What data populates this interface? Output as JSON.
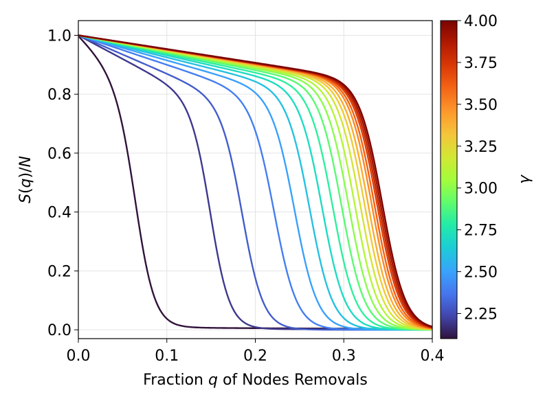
{
  "chart_data": {
    "type": "line",
    "title": "",
    "xlabel": "Fraction q of Nodes Removals",
    "xlabel_parts": [
      "Fraction ",
      "q",
      " of Nodes Removals"
    ],
    "ylabel": "S(q)/N",
    "ylabel_parts": [
      "S",
      "(",
      "q",
      ")/",
      "N"
    ],
    "xlim": [
      0.0,
      0.4
    ],
    "ylim": [
      -0.03,
      1.05
    ],
    "x_ticks": [
      "0.0",
      "0.1",
      "0.2",
      "0.3",
      "0.4"
    ],
    "y_ticks": [
      "0.0",
      "0.2",
      "0.4",
      "0.6",
      "0.8",
      "1.0"
    ],
    "grid": true,
    "colormap": "turbo",
    "colorbar": {
      "label": "γ",
      "range": [
        2.1,
        4.0
      ],
      "ticks": [
        "2.25",
        "2.50",
        "2.75",
        "3.00",
        "3.25",
        "3.50",
        "3.75",
        "4.00"
      ]
    },
    "series": [
      {
        "gamma": 2.1,
        "qc": 0.066,
        "w": 0.011,
        "plateau": 0.01,
        "k": 3.0
      },
      {
        "gamma": 2.2,
        "qc": 0.15,
        "w": 0.011,
        "plateau": 0.004,
        "k": 1.6
      },
      {
        "gamma": 2.3,
        "qc": 0.186,
        "w": 0.012,
        "plateau": 0.0,
        "k": 1.3
      },
      {
        "gamma": 2.4,
        "qc": 0.222,
        "w": 0.013,
        "plateau": 0.0,
        "k": 1.0
      },
      {
        "gamma": 2.5,
        "qc": 0.245,
        "w": 0.013,
        "plateau": 0.0,
        "k": 0.85
      },
      {
        "gamma": 2.6,
        "qc": 0.262,
        "w": 0.013,
        "plateau": 0.0,
        "k": 0.75
      },
      {
        "gamma": 2.7,
        "qc": 0.276,
        "w": 0.013,
        "plateau": 0.0,
        "k": 0.68
      },
      {
        "gamma": 2.8,
        "qc": 0.288,
        "w": 0.013,
        "plateau": 0.0,
        "k": 0.63
      },
      {
        "gamma": 2.9,
        "qc": 0.298,
        "w": 0.013,
        "plateau": 0.0,
        "k": 0.59
      },
      {
        "gamma": 3.0,
        "qc": 0.306,
        "w": 0.013,
        "plateau": 0.0,
        "k": 0.56
      },
      {
        "gamma": 3.1,
        "qc": 0.313,
        "w": 0.013,
        "plateau": 0.0,
        "k": 0.54
      },
      {
        "gamma": 3.2,
        "qc": 0.319,
        "w": 0.013,
        "plateau": 0.0,
        "k": 0.52
      },
      {
        "gamma": 3.3,
        "qc": 0.324,
        "w": 0.013,
        "plateau": 0.0,
        "k": 0.51
      },
      {
        "gamma": 3.4,
        "qc": 0.328,
        "w": 0.013,
        "plateau": 0.0,
        "k": 0.5
      },
      {
        "gamma": 3.5,
        "qc": 0.332,
        "w": 0.013,
        "plateau": 0.0,
        "k": 0.49
      },
      {
        "gamma": 3.6,
        "qc": 0.335,
        "w": 0.013,
        "plateau": 0.0,
        "k": 0.485
      },
      {
        "gamma": 3.7,
        "qc": 0.338,
        "w": 0.013,
        "plateau": 0.0,
        "k": 0.48
      },
      {
        "gamma": 3.8,
        "qc": 0.34,
        "w": 0.013,
        "plateau": 0.0,
        "k": 0.475
      },
      {
        "gamma": 3.9,
        "qc": 0.342,
        "w": 0.013,
        "plateau": 0.0,
        "k": 0.47
      },
      {
        "gamma": 4.0,
        "qc": 0.344,
        "w": 0.013,
        "plateau": 0.0,
        "k": 0.465
      }
    ]
  }
}
